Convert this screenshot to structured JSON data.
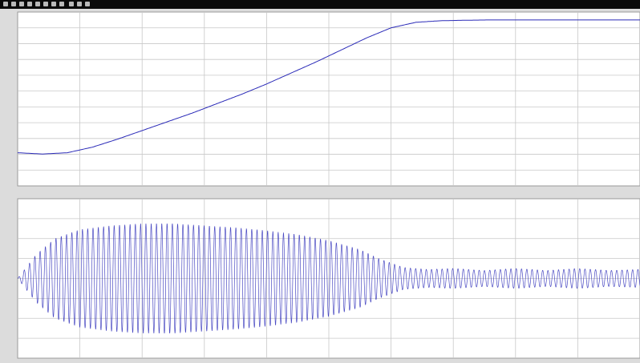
{
  "window": {
    "title": "",
    "toolbar_icons": [
      "print-icon",
      "settings-icon",
      "zoom-in-icon",
      "zoom-x-icon",
      "zoom-y-icon",
      "autoscale-icon",
      "save-axes-icon",
      "restore-icon",
      "float-icon",
      "lock-icon",
      "select-signals-icon"
    ]
  },
  "colors": {
    "background": "#dcdcdc",
    "plot_background": "#ffffff",
    "grid": "#c8c8c8",
    "trace": "#2b2bb8",
    "titlebar": "#0a0a0a"
  },
  "chart_data": [
    {
      "type": "line",
      "title": "",
      "xlabel": "",
      "ylabel": "",
      "grid": true,
      "xlim": [
        0,
        10
      ],
      "ylim": [
        -1,
        10
      ],
      "x_ticks": [],
      "y_ticks": [],
      "series": [
        {
          "x": [
            0,
            0.4,
            0.8,
            1.2,
            1.6,
            2.0,
            2.4,
            2.8,
            3.2,
            3.6,
            4.0,
            4.4,
            4.8,
            5.2,
            5.6,
            6.0,
            6.4,
            6.8,
            7.2,
            7.6,
            8.0,
            8.4,
            8.8,
            9.2,
            9.6,
            10.0
          ],
          "values": [
            1.1,
            1.02,
            1.1,
            1.45,
            1.95,
            2.5,
            3.05,
            3.6,
            4.2,
            4.8,
            5.45,
            6.15,
            6.85,
            7.6,
            8.35,
            9.0,
            9.35,
            9.45,
            9.48,
            9.5,
            9.5,
            9.5,
            9.5,
            9.5,
            9.5,
            9.5
          ]
        }
      ]
    },
    {
      "type": "line",
      "title": "",
      "xlabel": "",
      "ylabel": "",
      "grid": true,
      "xlim": [
        0,
        10
      ],
      "ylim": [
        -4,
        4
      ],
      "x_ticks": [],
      "y_ticks": [],
      "oscillation_period": 0.085,
      "series": [
        {
          "x": [
            0,
            0.3,
            0.6,
            1.0,
            1.5,
            2.0,
            2.5,
            3.0,
            3.5,
            4.0,
            4.5,
            5.0,
            5.5,
            5.8,
            6.2,
            6.6,
            7.0,
            7.5,
            8.0,
            8.5,
            9.0,
            9.5,
            10.0
          ],
          "values": [
            0.0,
            1.2,
            2.0,
            2.45,
            2.65,
            2.75,
            2.75,
            2.65,
            2.55,
            2.4,
            2.2,
            1.9,
            1.45,
            1.0,
            0.55,
            0.45,
            0.5,
            0.4,
            0.5,
            0.4,
            0.5,
            0.4,
            0.45
          ]
        }
      ]
    }
  ]
}
